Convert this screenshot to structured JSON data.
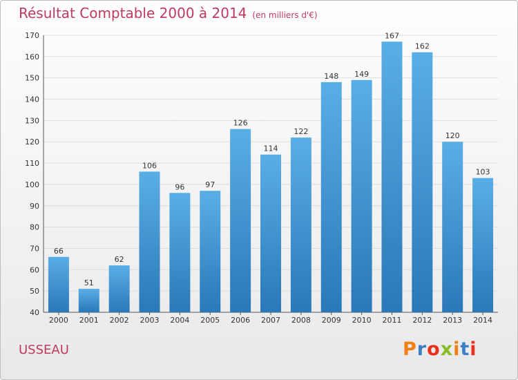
{
  "header": {
    "title": "Résultat Comptable 2000 à 2014",
    "unit": "(en milliers d'€)"
  },
  "footer": {
    "commune": "USSEAU",
    "logo": {
      "text": "Proxiti",
      "letter_colors": [
        "#f07f14",
        "#3b7fc4",
        "#e8301c",
        "#86bd24",
        "#f07f14",
        "#3b7fc4",
        "#e8301c"
      ]
    }
  },
  "colors": {
    "title": "#c0395e",
    "bar_top": "#5aaee6",
    "bar_bottom": "#2a78b8",
    "grid": "#dddddd"
  },
  "chart_data": {
    "type": "bar",
    "title": "Résultat Comptable 2000 à 2014",
    "unit": "(en milliers d'€)",
    "categories": [
      "2000",
      "2001",
      "2002",
      "2003",
      "2004",
      "2005",
      "2006",
      "2007",
      "2008",
      "2009",
      "2010",
      "2011",
      "2012",
      "2013",
      "2014"
    ],
    "values": [
      66,
      51,
      62,
      106,
      96,
      97,
      126,
      114,
      122,
      148,
      149,
      167,
      162,
      120,
      103
    ],
    "ylim": [
      40,
      170
    ],
    "yticks": [
      40,
      50,
      60,
      70,
      80,
      90,
      100,
      110,
      120,
      130,
      140,
      150,
      160,
      170
    ],
    "grid": true,
    "data_labels": true
  }
}
